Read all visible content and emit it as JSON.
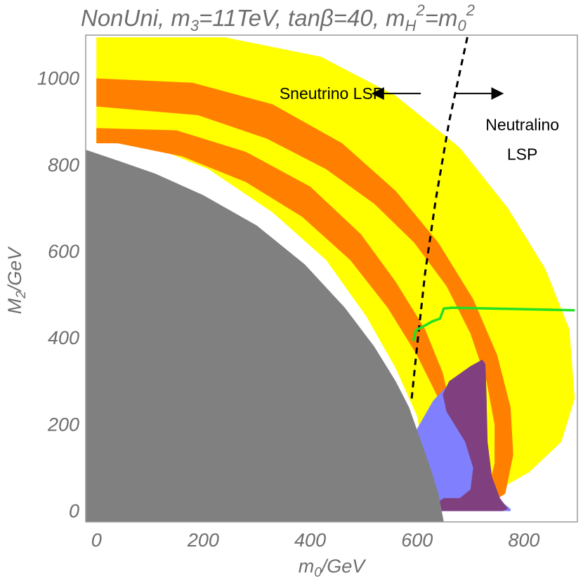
{
  "chart_data": {
    "type": "region",
    "title": {
      "prefix": "NonUni, m",
      "sub1": "3",
      "mid1": "=11TeV, tanβ=40, m",
      "sub2": "H",
      "sup2": "2",
      "mid2": "=m",
      "sub3": "0",
      "sup3": "2"
    },
    "xlabel": {
      "main": "m",
      "sub": "0",
      "unit": "/GeV"
    },
    "ylabel": {
      "main": "M",
      "sub": "2",
      "unit": "/GeV"
    },
    "xlim": [
      -20,
      900
    ],
    "ylim": [
      -25,
      1100
    ],
    "xticks": [
      "0",
      "200",
      "400",
      "600",
      "800"
    ],
    "yticks": [
      "0",
      "200",
      "400",
      "600",
      "800",
      "1000"
    ],
    "grid": false,
    "colors": {
      "excluded": "#808080",
      "yellow_band": "#ffff00",
      "orange_band": "#ff8000",
      "blue_region": "#8080ff",
      "purple_region": "#804080",
      "green_line": "#22e022",
      "boundary_line": "#000000",
      "frame": "#999999"
    },
    "regions": [
      {
        "id": "yellow-band",
        "color": "yellow_band",
        "points": [
          [
            0,
            1095
          ],
          [
            240,
            1095
          ],
          [
            420,
            1050
          ],
          [
            560,
            960
          ],
          [
            680,
            840
          ],
          [
            770,
            700
          ],
          [
            840,
            560
          ],
          [
            885,
            420
          ],
          [
            895,
            260
          ],
          [
            870,
            160
          ],
          [
            810,
            90
          ],
          [
            760,
            55
          ],
          [
            700,
            40
          ],
          [
            650,
            50
          ],
          [
            620,
            90
          ],
          [
            610,
            150
          ],
          [
            600,
            220
          ],
          [
            560,
            330
          ],
          [
            505,
            450
          ],
          [
            430,
            580
          ],
          [
            330,
            690
          ],
          [
            210,
            790
          ],
          [
            90,
            850
          ],
          [
            0,
            850
          ]
        ]
      },
      {
        "id": "orange-band",
        "color": "orange_band",
        "points": [
          [
            0,
            1000
          ],
          [
            180,
            990
          ],
          [
            330,
            940
          ],
          [
            460,
            850
          ],
          [
            560,
            740
          ],
          [
            640,
            620
          ],
          [
            705,
            490
          ],
          [
            750,
            360
          ],
          [
            775,
            240
          ],
          [
            780,
            130
          ],
          [
            765,
            40
          ],
          [
            725,
            10
          ],
          [
            690,
            20
          ],
          [
            670,
            60
          ],
          [
            660,
            120
          ],
          [
            655,
            190
          ],
          [
            640,
            260
          ],
          [
            600,
            360
          ],
          [
            545,
            470
          ],
          [
            475,
            580
          ],
          [
            385,
            680
          ],
          [
            280,
            760
          ],
          [
            160,
            820
          ],
          [
            40,
            850
          ],
          [
            0,
            850
          ],
          [
            0,
            885
          ],
          [
            150,
            880
          ],
          [
            280,
            830
          ],
          [
            400,
            750
          ],
          [
            495,
            640
          ],
          [
            560,
            530
          ],
          [
            615,
            420
          ],
          [
            648,
            320
          ],
          [
            665,
            230
          ],
          [
            675,
            160
          ],
          [
            690,
            100
          ],
          [
            710,
            60
          ],
          [
            735,
            60
          ],
          [
            745,
            110
          ],
          [
            745,
            200
          ],
          [
            730,
            300
          ],
          [
            700,
            410
          ],
          [
            655,
            520
          ],
          [
            595,
            620
          ],
          [
            520,
            710
          ],
          [
            430,
            790
          ],
          [
            320,
            860
          ],
          [
            190,
            915
          ],
          [
            0,
            935
          ]
        ]
      },
      {
        "id": "blue-region",
        "color": "blue_region",
        "points": [
          [
            600,
            190
          ],
          [
            630,
            255
          ],
          [
            665,
            300
          ],
          [
            700,
            330
          ],
          [
            722,
            345
          ],
          [
            728,
            330
          ],
          [
            730,
            260
          ],
          [
            730,
            160
          ],
          [
            735,
            80
          ],
          [
            750,
            30
          ],
          [
            775,
            5
          ],
          [
            775,
            0
          ],
          [
            635,
            0
          ],
          [
            620,
            40
          ],
          [
            605,
            110
          ],
          [
            597,
            160
          ]
        ]
      },
      {
        "id": "purple-region",
        "color": "purple_region",
        "points": [
          [
            660,
            300
          ],
          [
            700,
            335
          ],
          [
            722,
            350
          ],
          [
            728,
            340
          ],
          [
            730,
            260
          ],
          [
            732,
            160
          ],
          [
            740,
            80
          ],
          [
            755,
            30
          ],
          [
            770,
            5
          ],
          [
            760,
            0
          ],
          [
            640,
            0
          ],
          [
            638,
            20
          ],
          [
            650,
            30
          ],
          [
            680,
            30
          ],
          [
            700,
            50
          ],
          [
            705,
            100
          ],
          [
            690,
            160
          ],
          [
            670,
            200
          ],
          [
            655,
            230
          ],
          [
            648,
            270
          ]
        ]
      },
      {
        "id": "excluded-region",
        "color": "excluded",
        "points": [
          [
            -20,
            835
          ],
          [
            -20,
            -25
          ],
          [
            650,
            -25
          ],
          [
            640,
            40
          ],
          [
            625,
            100
          ],
          [
            605,
            170
          ],
          [
            585,
            240
          ],
          [
            560,
            300
          ],
          [
            520,
            380
          ],
          [
            465,
            470
          ],
          [
            390,
            570
          ],
          [
            300,
            660
          ],
          [
            200,
            730
          ],
          [
            110,
            780
          ],
          [
            40,
            810
          ],
          [
            -20,
            835
          ]
        ]
      }
    ],
    "lines": [
      {
        "id": "lsp-boundary",
        "color": "boundary_line",
        "dash": true,
        "points": [
          [
            590,
            260
          ],
          [
            600,
            380
          ],
          [
            615,
            550
          ],
          [
            635,
            720
          ],
          [
            660,
            900
          ],
          [
            695,
            1100
          ]
        ]
      },
      {
        "id": "constraint-curve",
        "color": "green_line",
        "dash": false,
        "points": [
          [
            593,
            393
          ],
          [
            598,
            418
          ],
          [
            612,
            427
          ],
          [
            628,
            438
          ],
          [
            643,
            445
          ],
          [
            650,
            468
          ],
          [
            665,
            470
          ],
          [
            740,
            468
          ],
          [
            820,
            466
          ],
          [
            895,
            464
          ]
        ]
      }
    ],
    "annotations": [
      {
        "id": "sneutrino-lsp",
        "text": "Sneutrino LSP",
        "x": 440,
        "y": 965,
        "anchor": "middle",
        "arrow": {
          "from": [
            607,
            965
          ],
          "to": [
            517,
            965
          ]
        }
      },
      {
        "id": "neutralino-lsp-1",
        "text": "Neutralino",
        "x": 797,
        "y": 893,
        "anchor": "middle",
        "arrow": {
          "from": [
            670,
            965
          ],
          "to": [
            760,
            965
          ]
        }
      },
      {
        "id": "neutralino-lsp-2",
        "text": "LSP",
        "x": 797,
        "y": 825,
        "anchor": "middle"
      }
    ]
  }
}
